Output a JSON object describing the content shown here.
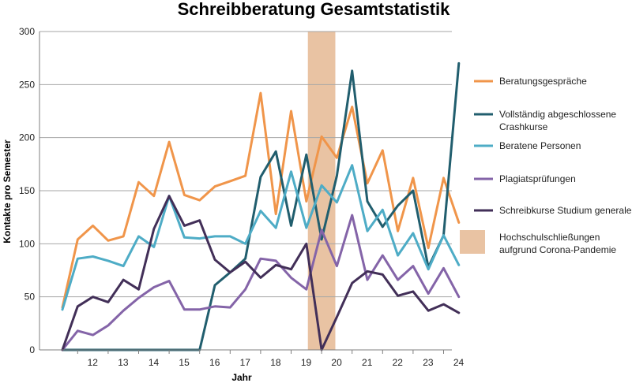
{
  "chart_data": {
    "type": "line",
    "title": "Schreibberatung Gesamtstatistik",
    "xlabel": "Jahr",
    "ylabel": "Kontakte pro Semester",
    "ylim": [
      0,
      300
    ],
    "yticks": [
      0,
      50,
      100,
      150,
      200,
      250,
      300
    ],
    "xticks": [
      "12",
      "13",
      "14",
      "15",
      "16",
      "17",
      "18",
      "19",
      "20",
      "21",
      "22",
      "23",
      "24"
    ],
    "grid": "horizontal",
    "legend_position": "right",
    "x": [
      "11.5",
      "12",
      "12.5",
      "13",
      "13.5",
      "14",
      "14.5",
      "15",
      "15.5",
      "16",
      "16.5",
      "17",
      "17.5",
      "18",
      "18.5",
      "19",
      "19.5",
      "20",
      "20.5",
      "21",
      "21.5",
      "22",
      "22.5",
      "23",
      "23.5",
      "24",
      "24.5"
    ],
    "series": [
      {
        "name": "Beratungsgespräche",
        "color": "#f0954a",
        "values": [
          40,
          104,
          117,
          103,
          107,
          158,
          145,
          196,
          146,
          141,
          154,
          159,
          164,
          242,
          128,
          225,
          140,
          201,
          181,
          229,
          157,
          188,
          112,
          162,
          96,
          162,
          120
        ]
      },
      {
        "name": "Vollständig abgeschlossene Crashkurse",
        "name_lines": [
          "Vollständig abgeschlossene",
          "Crashkurse"
        ],
        "color": "#215e6e",
        "values": [
          0,
          0,
          0,
          0,
          0,
          0,
          0,
          0,
          0,
          0,
          61,
          73,
          86,
          163,
          187,
          117,
          184,
          104,
          164,
          263,
          140,
          116,
          136,
          150,
          78,
          108,
          270
        ]
      },
      {
        "name": "Beratene Personen",
        "color": "#4eacc6",
        "values": [
          38,
          86,
          88,
          84,
          79,
          107,
          97,
          145,
          106,
          105,
          107,
          107,
          100,
          131,
          115,
          168,
          115,
          155,
          139,
          174,
          112,
          132,
          89,
          110,
          76,
          108,
          80
        ]
      },
      {
        "name": "Plagiatsprüfungen",
        "color": "#8464a8",
        "values": [
          0,
          18,
          14,
          23,
          37,
          49,
          59,
          65,
          38,
          38,
          41,
          40,
          57,
          86,
          84,
          68,
          57,
          113,
          79,
          127,
          66,
          89,
          66,
          79,
          53,
          77,
          50
        ]
      },
      {
        "name": "Schreibkurse Studium generale",
        "color": "#422f58",
        "values": [
          0,
          41,
          50,
          45,
          66,
          57,
          114,
          145,
          117,
          122,
          85,
          73,
          83,
          68,
          80,
          76,
          100,
          0,
          31,
          63,
          74,
          71,
          51,
          55,
          37,
          43,
          35
        ]
      }
    ],
    "shaded_band": {
      "label": "Hochschulschließungen aufgrund Corona-Pandemie",
      "label_lines": [
        "Hochschulschließungen",
        "aufgrund Corona-Pandemie"
      ],
      "x_from": 19.55,
      "x_to": 20.45,
      "color": "#e9c3a3"
    }
  }
}
